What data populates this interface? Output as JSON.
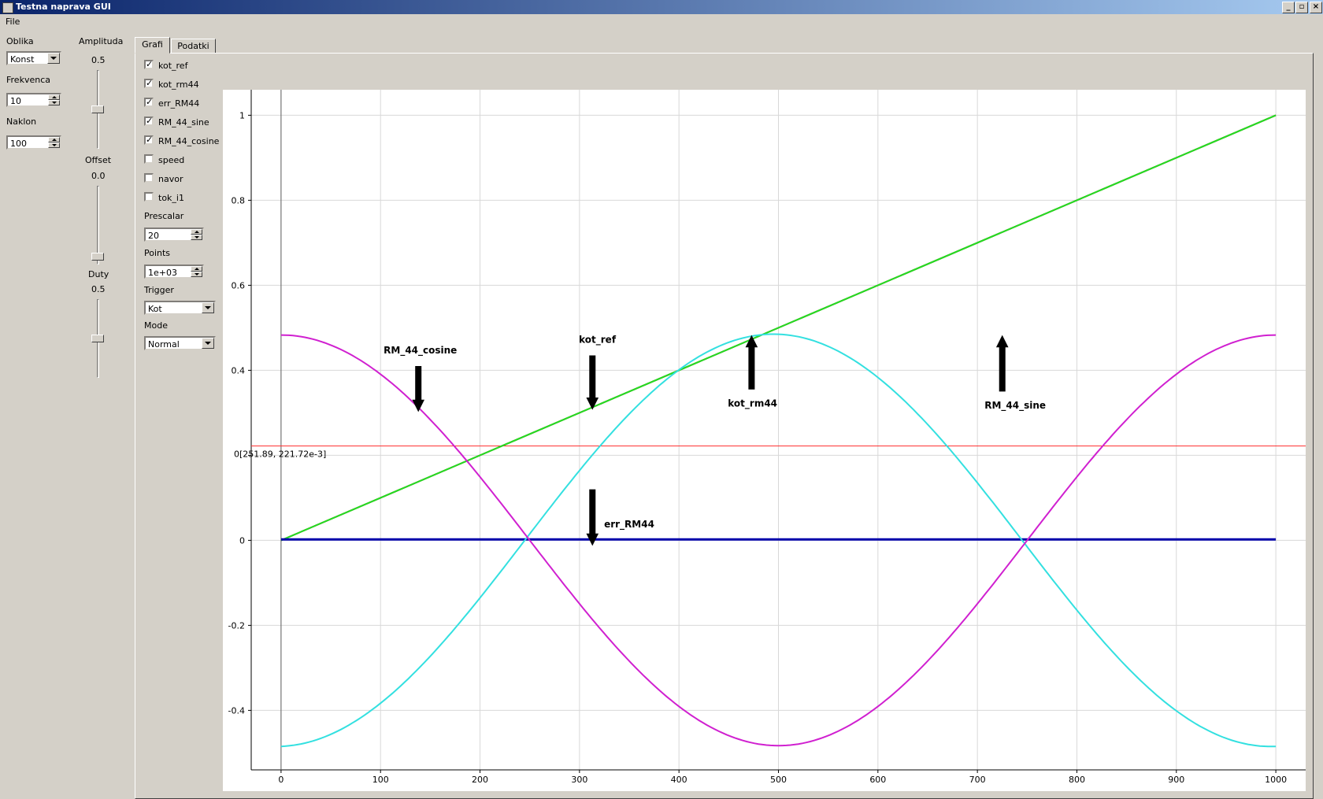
{
  "window": {
    "title": "Testna naprava GUI"
  },
  "menu": {
    "file": "File"
  },
  "left": {
    "oblika_label": "Oblika",
    "oblika_value": "Konst",
    "frekvenca_label": "Frekvenca",
    "frekvenca_value": "10",
    "naklon_label": "Naklon",
    "naklon_value": "100",
    "amplituda_label": "Amplituda",
    "amplituda_value": "0.5",
    "amplituda_level": 0.5,
    "offset_label": "Offset",
    "offset_value": "0.0",
    "offset_level": 0.0,
    "duty_label": "Duty",
    "duty_value": "0.5",
    "duty_level": 0.5
  },
  "tabs": [
    {
      "label": "Grafi",
      "active": true
    },
    {
      "label": "Podatki",
      "active": false
    }
  ],
  "channels": [
    {
      "label": "kot_ref",
      "checked": true
    },
    {
      "label": "kot_rm44",
      "checked": true
    },
    {
      "label": "err_RM44",
      "checked": true
    },
    {
      "label": "RM_44_sine",
      "checked": true
    },
    {
      "label": "RM_44_cosine",
      "checked": true
    },
    {
      "label": "speed",
      "checked": false
    },
    {
      "label": "navor",
      "checked": false
    },
    {
      "label": "tok_i1",
      "checked": false
    }
  ],
  "controls": {
    "prescalar_label": "Prescalar",
    "prescalar_value": "20",
    "points_label": "Points",
    "points_value": "1e+03",
    "trigger_label": "Trigger",
    "trigger_value": "Kot",
    "mode_label": "Mode",
    "mode_value": "Normal"
  },
  "chart_data": {
    "type": "line",
    "xlim": [
      -30,
      1030
    ],
    "ylim": [
      -0.54,
      1.06
    ],
    "x_ticks": [
      0,
      100,
      200,
      300,
      400,
      500,
      600,
      700,
      800,
      900,
      1000
    ],
    "y_ticks": [
      -0.4,
      -0.2,
      0,
      0.2,
      0.4,
      0.6,
      0.8,
      1
    ],
    "y_tick_labels": [
      "-0.4",
      "-0.2",
      "0",
      "",
      "0.4",
      "0.6",
      "0.8",
      "1"
    ],
    "grid": true,
    "series": [
      {
        "name": "kot_ref",
        "color": "#8b2a00",
        "x": [
          0,
          1000
        ],
        "y": [
          0,
          1
        ]
      },
      {
        "name": "kot_rm44",
        "color": "#22dd22",
        "x": [
          0,
          1000
        ],
        "y": [
          0,
          1
        ]
      },
      {
        "name": "err_RM44",
        "color": "#0000aa",
        "x": [
          0,
          1000
        ],
        "y": [
          0.002,
          0.002
        ]
      },
      {
        "name": "RM_44_sine",
        "color": "#33e0e0",
        "amplitude": 0.485,
        "period": 1000,
        "phase_x": 495,
        "x": [
          0,
          1000
        ]
      },
      {
        "name": "RM_44_cosine",
        "color": "#d020d0",
        "amplitude": 0.483,
        "period": 1000,
        "phase_x": 0,
        "x": [
          0,
          1000
        ]
      }
    ],
    "reference_line": {
      "y": 0.222,
      "color": "#ff3333"
    },
    "cursor_readout": "0[251.89, 221.72e-3]",
    "annotations": [
      {
        "text": "RM_44_cosine",
        "arrow": "down"
      },
      {
        "text": "kot_ref",
        "arrow": "down"
      },
      {
        "text": "kot_rm44",
        "arrow": "up"
      },
      {
        "text": "RM_44_sine",
        "arrow": "up"
      },
      {
        "text": "err_RM44",
        "arrow": "down"
      }
    ]
  }
}
